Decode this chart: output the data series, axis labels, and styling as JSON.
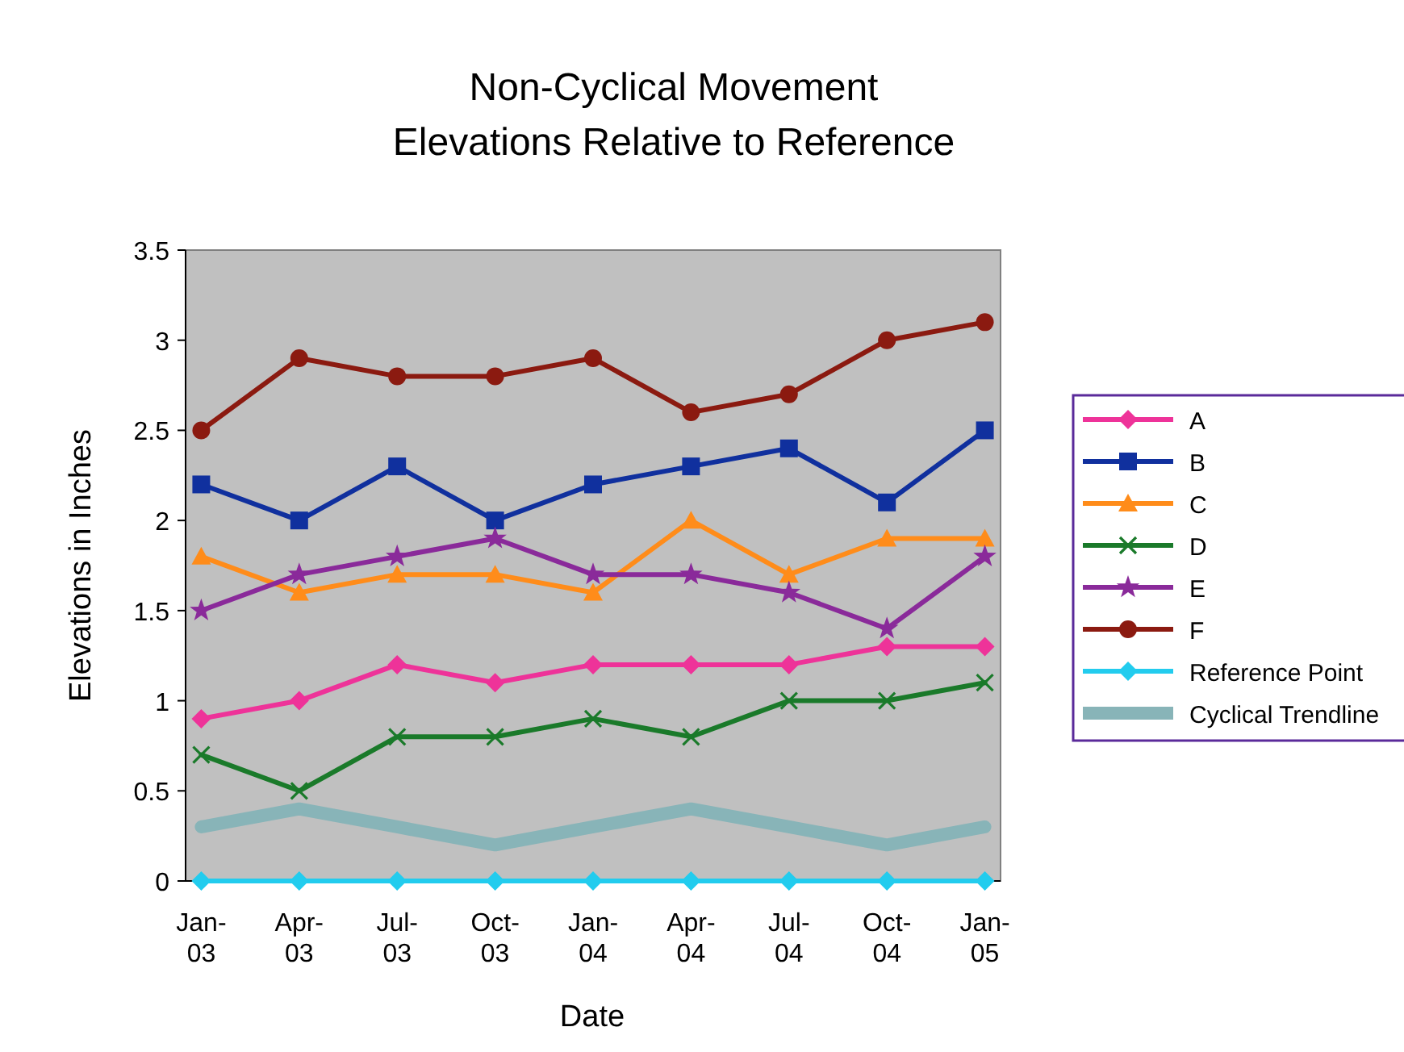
{
  "chart_data": {
    "type": "line",
    "title": "Non-Cyclical Movement\nElevations Relative to Reference",
    "xlabel": "Date",
    "ylabel": "Elevations in Inches",
    "categories": [
      "Jan-03",
      "Apr-03",
      "Jul-03",
      "Oct-03",
      "Jan-04",
      "Apr-04",
      "Jul-04",
      "Oct-04",
      "Jan-05"
    ],
    "ylim": [
      0,
      3.5
    ],
    "yticks": [
      0,
      0.5,
      1,
      1.5,
      2,
      2.5,
      3,
      3.5
    ],
    "grid": false,
    "legend": "right",
    "series": [
      {
        "name": "A",
        "color": "#ee3399",
        "marker": "diamond",
        "values": [
          0.9,
          1.0,
          1.2,
          1.1,
          1.2,
          1.2,
          1.2,
          1.3,
          1.3
        ]
      },
      {
        "name": "B",
        "color": "#10309e",
        "marker": "square",
        "values": [
          2.2,
          2.0,
          2.3,
          2.0,
          2.2,
          2.3,
          2.4,
          2.1,
          2.5
        ]
      },
      {
        "name": "C",
        "color": "#ff8c1a",
        "marker": "triangle",
        "values": [
          1.8,
          1.6,
          1.7,
          1.7,
          1.6,
          2.0,
          1.7,
          1.9,
          1.9
        ]
      },
      {
        "name": "D",
        "color": "#1a7a2a",
        "marker": "cross",
        "values": [
          0.7,
          0.5,
          0.8,
          0.8,
          0.9,
          0.8,
          1.0,
          1.0,
          1.1
        ]
      },
      {
        "name": "E",
        "color": "#8a2a9a",
        "marker": "star",
        "values": [
          1.5,
          1.7,
          1.8,
          1.9,
          1.7,
          1.7,
          1.6,
          1.4,
          1.8
        ]
      },
      {
        "name": "F",
        "color": "#8b1a10",
        "marker": "circle",
        "values": [
          2.5,
          2.9,
          2.8,
          2.8,
          2.9,
          2.6,
          2.7,
          3.0,
          3.1
        ]
      },
      {
        "name": "Reference Point",
        "color": "#22ccee",
        "marker": "diamond",
        "values": [
          0,
          0,
          0,
          0,
          0,
          0,
          0,
          0,
          0
        ]
      },
      {
        "name": "Cyclical Trendline",
        "color": "#88b4b8",
        "marker": "none",
        "values": [
          0.3,
          0.4,
          0.3,
          0.2,
          0.3,
          0.4,
          0.3,
          0.2,
          0.3
        ]
      }
    ]
  }
}
